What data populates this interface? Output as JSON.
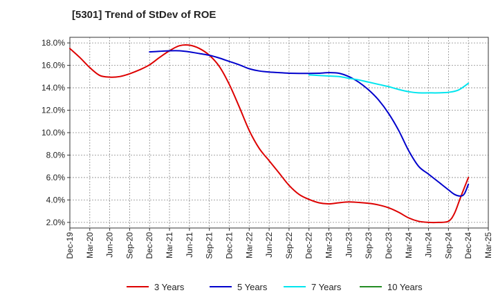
{
  "chart_data": {
    "type": "line",
    "title": "[5301]  Trend of StDev of ROE",
    "xlabel": "",
    "ylabel": "",
    "y_tick_labels": [
      "2.0%",
      "4.0%",
      "6.0%",
      "8.0%",
      "10.0%",
      "12.0%",
      "14.0%",
      "16.0%",
      "18.0%"
    ],
    "y_ticks": [
      2,
      4,
      6,
      8,
      10,
      12,
      14,
      16,
      18
    ],
    "ylim": [
      1.5,
      18.5
    ],
    "x_tick_labels": [
      "Dec-19",
      "Mar-20",
      "Jun-20",
      "Sep-20",
      "Dec-20",
      "Mar-21",
      "Jun-21",
      "Sep-21",
      "Dec-21",
      "Mar-22",
      "Jun-22",
      "Sep-22",
      "Dec-22",
      "Mar-23",
      "Jun-23",
      "Sep-23",
      "Dec-23",
      "Mar-24",
      "Jun-24",
      "Sep-24",
      "Dec-24",
      "Mar-25"
    ],
    "xlim": [
      0,
      21
    ],
    "grid": true,
    "legend_position": "bottom",
    "series": [
      {
        "name": "3 Years",
        "color": "#dd0000",
        "points": [
          [
            0,
            17.5
          ],
          [
            0.5,
            16.7
          ],
          [
            1,
            15.8
          ],
          [
            1.5,
            15.1
          ],
          [
            2,
            14.95
          ],
          [
            2.5,
            15.0
          ],
          [
            3,
            15.25
          ],
          [
            3.5,
            15.6
          ],
          [
            4,
            16.05
          ],
          [
            4.5,
            16.7
          ],
          [
            5,
            17.3
          ],
          [
            5.5,
            17.75
          ],
          [
            6,
            17.8
          ],
          [
            6.5,
            17.5
          ],
          [
            7,
            16.9
          ],
          [
            7.5,
            15.9
          ],
          [
            8,
            14.3
          ],
          [
            8.5,
            12.3
          ],
          [
            9,
            10.2
          ],
          [
            9.5,
            8.6
          ],
          [
            10,
            7.5
          ],
          [
            10.5,
            6.4
          ],
          [
            11,
            5.3
          ],
          [
            11.5,
            4.5
          ],
          [
            12,
            4.05
          ],
          [
            12.5,
            3.75
          ],
          [
            13,
            3.65
          ],
          [
            13.5,
            3.75
          ],
          [
            14,
            3.82
          ],
          [
            14.5,
            3.78
          ],
          [
            15,
            3.7
          ],
          [
            15.5,
            3.55
          ],
          [
            16,
            3.3
          ],
          [
            16.5,
            2.9
          ],
          [
            17,
            2.4
          ],
          [
            17.5,
            2.1
          ],
          [
            18,
            2.0
          ],
          [
            18.5,
            2.0
          ],
          [
            19,
            2.1
          ],
          [
            19.3,
            2.8
          ],
          [
            19.6,
            4.2
          ],
          [
            20,
            6.0
          ]
        ]
      },
      {
        "name": "5 Years",
        "color": "#0000cc",
        "points": [
          [
            4,
            17.2
          ],
          [
            4.5,
            17.25
          ],
          [
            5,
            17.3
          ],
          [
            5.5,
            17.3
          ],
          [
            6,
            17.2
          ],
          [
            6.5,
            17.05
          ],
          [
            7,
            16.9
          ],
          [
            7.5,
            16.65
          ],
          [
            8,
            16.35
          ],
          [
            8.5,
            16.05
          ],
          [
            9,
            15.7
          ],
          [
            9.5,
            15.5
          ],
          [
            10,
            15.4
          ],
          [
            10.5,
            15.35
          ],
          [
            11,
            15.3
          ],
          [
            11.5,
            15.28
          ],
          [
            12,
            15.28
          ],
          [
            12.5,
            15.3
          ],
          [
            13,
            15.35
          ],
          [
            13.5,
            15.3
          ],
          [
            14,
            15.0
          ],
          [
            14.5,
            14.5
          ],
          [
            15,
            13.8
          ],
          [
            15.5,
            12.9
          ],
          [
            16,
            11.7
          ],
          [
            16.5,
            10.2
          ],
          [
            17,
            8.4
          ],
          [
            17.5,
            7.0
          ],
          [
            18,
            6.3
          ],
          [
            18.5,
            5.6
          ],
          [
            19,
            4.9
          ],
          [
            19.3,
            4.5
          ],
          [
            19.6,
            4.35
          ],
          [
            19.8,
            4.55
          ],
          [
            20,
            5.4
          ]
        ]
      },
      {
        "name": "7 Years",
        "color": "#00e5ee",
        "points": [
          [
            12,
            15.15
          ],
          [
            12.5,
            15.1
          ],
          [
            13,
            15.05
          ],
          [
            13.5,
            15.0
          ],
          [
            14,
            14.85
          ],
          [
            14.5,
            14.7
          ],
          [
            15,
            14.5
          ],
          [
            15.5,
            14.3
          ],
          [
            16,
            14.1
          ],
          [
            16.5,
            13.85
          ],
          [
            17,
            13.65
          ],
          [
            17.5,
            13.55
          ],
          [
            18,
            13.55
          ],
          [
            18.5,
            13.55
          ],
          [
            19,
            13.6
          ],
          [
            19.5,
            13.8
          ],
          [
            20,
            14.4
          ]
        ]
      },
      {
        "name": "10 Years",
        "color": "#228b22",
        "points": []
      }
    ]
  }
}
